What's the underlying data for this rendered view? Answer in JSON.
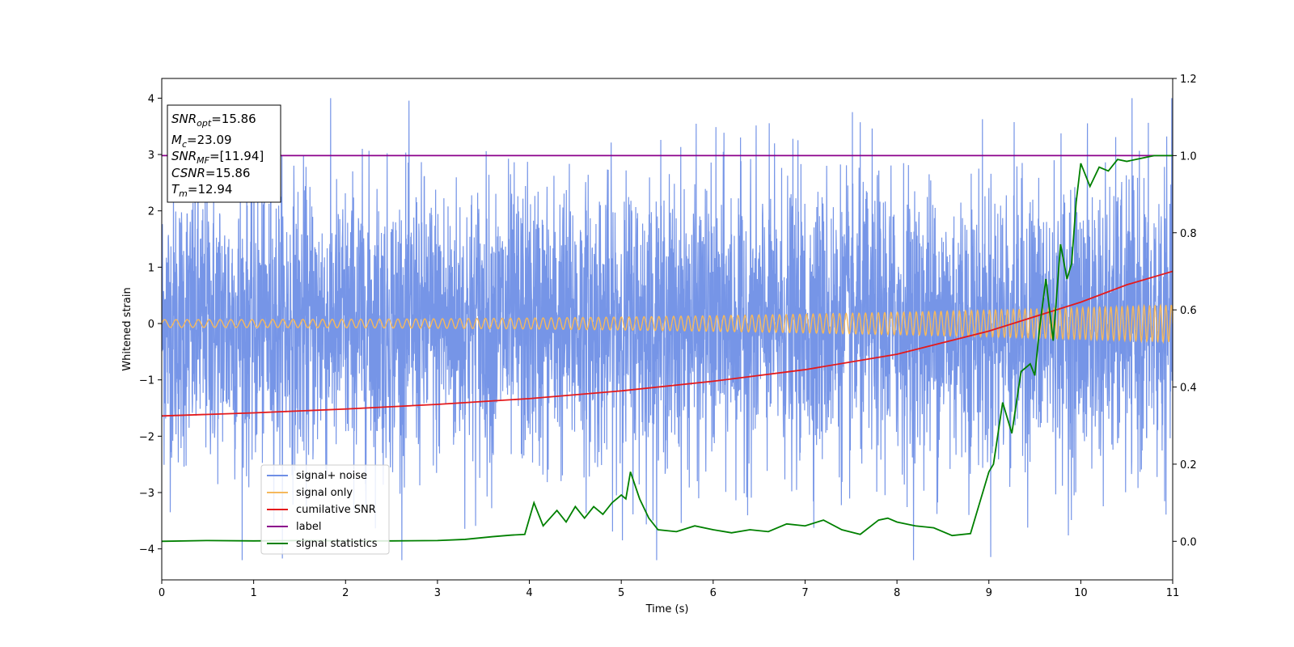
{
  "chart_data": {
    "type": "line",
    "xlabel": "Time (s)",
    "ylabel": "Whitened strain",
    "xlim": [
      0,
      11
    ],
    "ylim": [
      -4.55,
      4.35
    ],
    "y2lim": [
      -0.1,
      1.2
    ],
    "xticks": [
      0,
      1,
      2,
      3,
      4,
      5,
      6,
      7,
      8,
      9,
      10,
      11
    ],
    "yticks": [
      -4,
      -3,
      -2,
      -1,
      0,
      1,
      2,
      3,
      4
    ],
    "y2ticks": [
      "0.0",
      "0.2",
      "0.4",
      "0.6",
      "0.8",
      "1.0",
      "1.2"
    ],
    "grid": false,
    "legend_position": "lower-left",
    "info_box": {
      "snr_opt": {
        "var": "SNR",
        "sub": "opt",
        "value": "=15.86"
      },
      "mc": {
        "var": "M",
        "sub": "c",
        "value": "=23.09"
      },
      "snr_mf": {
        "var": "SNR",
        "sub": "MF",
        "value": "=[11.94]"
      },
      "csnr": {
        "var": "CSNR",
        "value": "=15.86"
      },
      "tm": {
        "var": "T",
        "sub": "m",
        "value": "=12.94"
      }
    },
    "series": [
      {
        "name": "signal+ noise",
        "color": "#6f8fe6",
        "axis": "left",
        "noise_std": 1.25,
        "approx_range": [
          -4.2,
          4.0
        ]
      },
      {
        "name": "signal only",
        "color": "#f5b85c",
        "axis": "left",
        "amplitude_start": 0.07,
        "amplitude_end": 0.33,
        "freq_start_hz": 8.0,
        "freq_end_hz": 17.0
      },
      {
        "name": "cumilative SNR",
        "color": "#e41a1c",
        "axis": "right",
        "x": [
          0,
          1,
          2,
          3,
          4,
          5,
          6,
          7,
          8,
          9,
          10,
          10.5,
          11
        ],
        "y": [
          0.325,
          0.333,
          0.343,
          0.355,
          0.37,
          0.39,
          0.415,
          0.445,
          0.485,
          0.545,
          0.62,
          0.665,
          0.7
        ]
      },
      {
        "name": "label",
        "color": "#8b008b",
        "axis": "right",
        "x": [
          0,
          11
        ],
        "y": [
          1.0,
          1.0
        ]
      },
      {
        "name": "signal statistics",
        "color": "#008000",
        "axis": "right",
        "x": [
          0,
          0.5,
          1,
          1.5,
          2,
          2.5,
          3,
          3.3,
          3.6,
          3.8,
          3.95,
          4.05,
          4.15,
          4.3,
          4.4,
          4.5,
          4.6,
          4.7,
          4.8,
          4.9,
          5.0,
          5.05,
          5.1,
          5.2,
          5.3,
          5.4,
          5.6,
          5.8,
          6.0,
          6.2,
          6.4,
          6.6,
          6.8,
          7.0,
          7.2,
          7.4,
          7.6,
          7.8,
          7.9,
          8.0,
          8.2,
          8.4,
          8.6,
          8.8,
          8.9,
          9.0,
          9.05,
          9.15,
          9.25,
          9.35,
          9.45,
          9.5,
          9.55,
          9.62,
          9.7,
          9.78,
          9.85,
          9.9,
          9.95,
          10.0,
          10.1,
          10.2,
          10.3,
          10.4,
          10.5,
          10.6,
          10.7,
          10.8,
          10.9,
          11.0
        ],
        "y": [
          0.0,
          0.002,
          0.001,
          0.002,
          0.001,
          0.001,
          0.002,
          0.005,
          0.012,
          0.016,
          0.018,
          0.1,
          0.04,
          0.08,
          0.05,
          0.09,
          0.06,
          0.09,
          0.07,
          0.1,
          0.12,
          0.11,
          0.18,
          0.11,
          0.06,
          0.03,
          0.025,
          0.04,
          0.03,
          0.022,
          0.03,
          0.025,
          0.045,
          0.04,
          0.055,
          0.03,
          0.018,
          0.055,
          0.06,
          0.05,
          0.04,
          0.035,
          0.015,
          0.02,
          0.1,
          0.18,
          0.2,
          0.36,
          0.28,
          0.44,
          0.46,
          0.43,
          0.55,
          0.68,
          0.52,
          0.77,
          0.68,
          0.72,
          0.88,
          0.98,
          0.92,
          0.97,
          0.96,
          0.99,
          0.985,
          0.99,
          0.995,
          1.0,
          1.0,
          1.0
        ]
      }
    ]
  }
}
